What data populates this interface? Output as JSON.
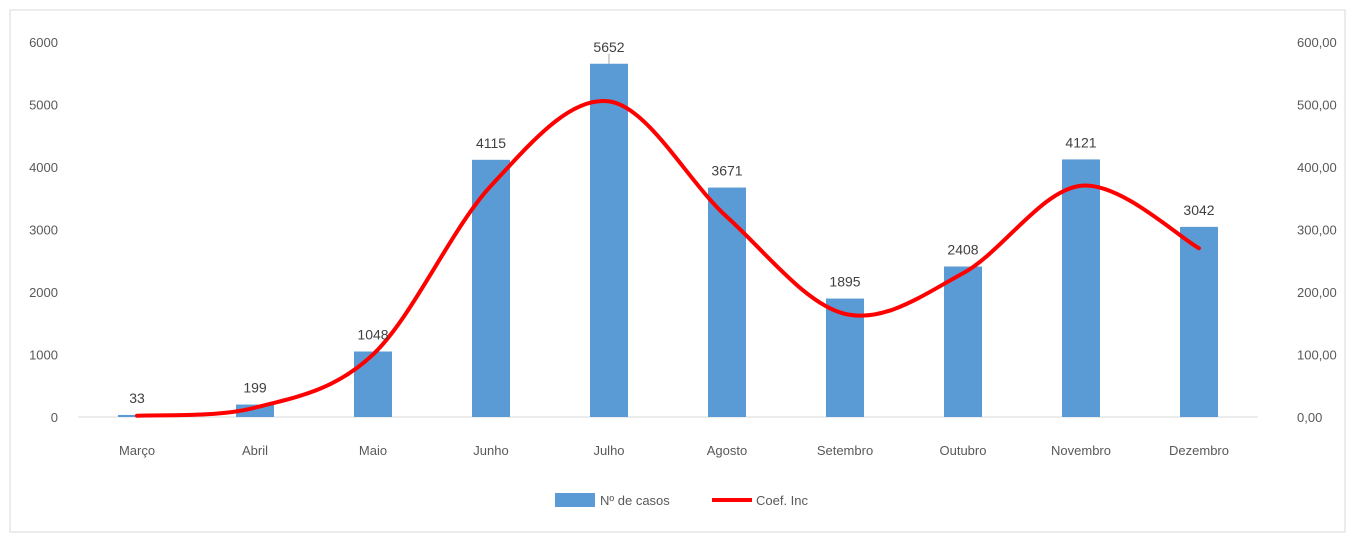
{
  "chart_data": {
    "type": "bar",
    "categories": [
      "Março",
      "Abril",
      "Maio",
      "Junho",
      "Julho",
      "Agosto",
      "Setembro",
      "Outubro",
      "Novembro",
      "Dezembro"
    ],
    "series": [
      {
        "name": "Nº de casos",
        "type": "bar",
        "axis": "left",
        "color": "#5b9bd5",
        "values": [
          33,
          199,
          1048,
          4115,
          5652,
          3671,
          1895,
          2408,
          4121,
          3042
        ],
        "data_labels": [
          "33",
          "199",
          "1048",
          "4115",
          "5652",
          "3671",
          "1895",
          "2408",
          "4121",
          "3042"
        ]
      },
      {
        "name": "Coef. Inc",
        "type": "line",
        "smooth": true,
        "axis": "right",
        "color": "#ff0000",
        "values": [
          2,
          15,
          100,
          370,
          505,
          320,
          165,
          230,
          370,
          270
        ]
      }
    ],
    "y_left": {
      "ylim": [
        0,
        6000
      ],
      "ticks": [
        "0",
        "1000",
        "2000",
        "3000",
        "4000",
        "5000",
        "6000"
      ]
    },
    "y_right": {
      "ylim": [
        0,
        600
      ],
      "ticks": [
        "0,00",
        "100,00",
        "200,00",
        "300,00",
        "400,00",
        "500,00",
        "600,00"
      ]
    },
    "legend": {
      "placement": "bottom"
    },
    "grid": false
  }
}
